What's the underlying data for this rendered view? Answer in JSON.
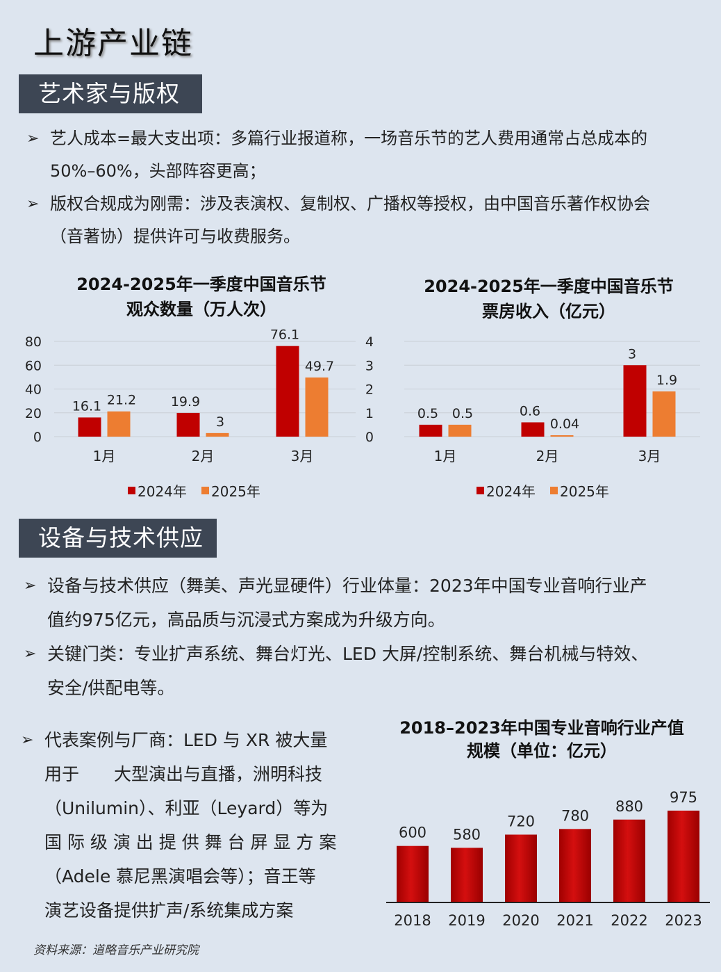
{
  "page_title": "上游产业链",
  "sections": [
    {
      "heading": "艺术家与版权",
      "bullets": [
        {
          "line1": "艺人成本=最大支出项：多篇行业报道称，一场音乐节的艺人费用通常占总成本的",
          "line2": "50%–60%，头部阵容更高；"
        },
        {
          "line1": "版权合规成为刚需：涉及表演权、复制权、广播权等授权，由中国音乐著作权协会",
          "line2": "（音著协）提供许可与收费服务。"
        }
      ]
    },
    {
      "heading": "设备与技术供应",
      "bullets": [
        {
          "line1": "设备与技术供应（舞美、声光显硬件）行业体量：2023年中国专业音响行业产",
          "line2": "值约975亿元，高品质与沉浸式方案成为升级方向。"
        },
        {
          "line1": "关键门类：专业扩声系统、舞台灯光、LED 大屏/控制系统、舞台机械与特效、",
          "line2": "安全/供配电等。"
        }
      ],
      "case_bullet": {
        "lines": [
          "代表案例与厂商：LED 与 XR 被大量",
          "用于　　大型演出与直播，洲明科技",
          "（Unilumin）、利亚（Leyard）等为",
          "国 际 级 演 出 提 供 舞 台 屏 显 方 案",
          "（Adele 慕尼黑演唱会等）；音王等",
          "演艺设备提供扩声/系统集成方案"
        ]
      }
    }
  ],
  "colors": {
    "series_2024": "#c00000",
    "series_2025": "#ed7d31",
    "tab_bg": "#3d4654",
    "page_bg": "#dde5ef"
  },
  "chart_data": [
    {
      "type": "bar",
      "title_line1": "2024-2025年一季度中国音乐节",
      "title_line2": "观众数量（万人次）",
      "categories": [
        "1月",
        "2月",
        "3月"
      ],
      "series": [
        {
          "name": "2024年",
          "values": [
            16.1,
            19.9,
            76.1
          ]
        },
        {
          "name": "2025年",
          "values": [
            21.2,
            3,
            49.7
          ]
        }
      ],
      "labels": [
        [
          "16.1",
          "19.9",
          "76.1"
        ],
        [
          "21.2",
          "3",
          "49.7"
        ]
      ],
      "ylim": [
        0,
        80
      ],
      "yticks": [
        "0",
        "20",
        "40",
        "60",
        "80"
      ],
      "legend": "bottom",
      "grid": true
    },
    {
      "type": "bar",
      "title_line1": "2024-2025年一季度中国音乐节",
      "title_line2": "票房收入（亿元）",
      "categories": [
        "1月",
        "2月",
        "3月"
      ],
      "series": [
        {
          "name": "2024年",
          "values": [
            0.5,
            0.6,
            3
          ]
        },
        {
          "name": "2025年",
          "values": [
            0.5,
            0.04,
            1.9
          ]
        }
      ],
      "labels": [
        [
          "0.5",
          "0.6",
          "3"
        ],
        [
          "0.5",
          "0.04",
          "1.9"
        ]
      ],
      "ylim": [
        0,
        4
      ],
      "yticks": [
        "0",
        "1",
        "2",
        "3",
        "4"
      ],
      "legend": "bottom",
      "grid": true
    },
    {
      "type": "bar",
      "title_line1": "2018–2023年中国专业音响行业产值",
      "title_line2": "规模（单位：亿元）",
      "categories": [
        "2018",
        "2019",
        "2020",
        "2021",
        "2022",
        "2023"
      ],
      "values": [
        600,
        580,
        720,
        780,
        880,
        975
      ],
      "labels": [
        "600",
        "580",
        "720",
        "780",
        "880",
        "975"
      ],
      "ylim": [
        0,
        1000
      ],
      "grid": false
    }
  ],
  "source": "资料来源：道略音乐产业研究院"
}
